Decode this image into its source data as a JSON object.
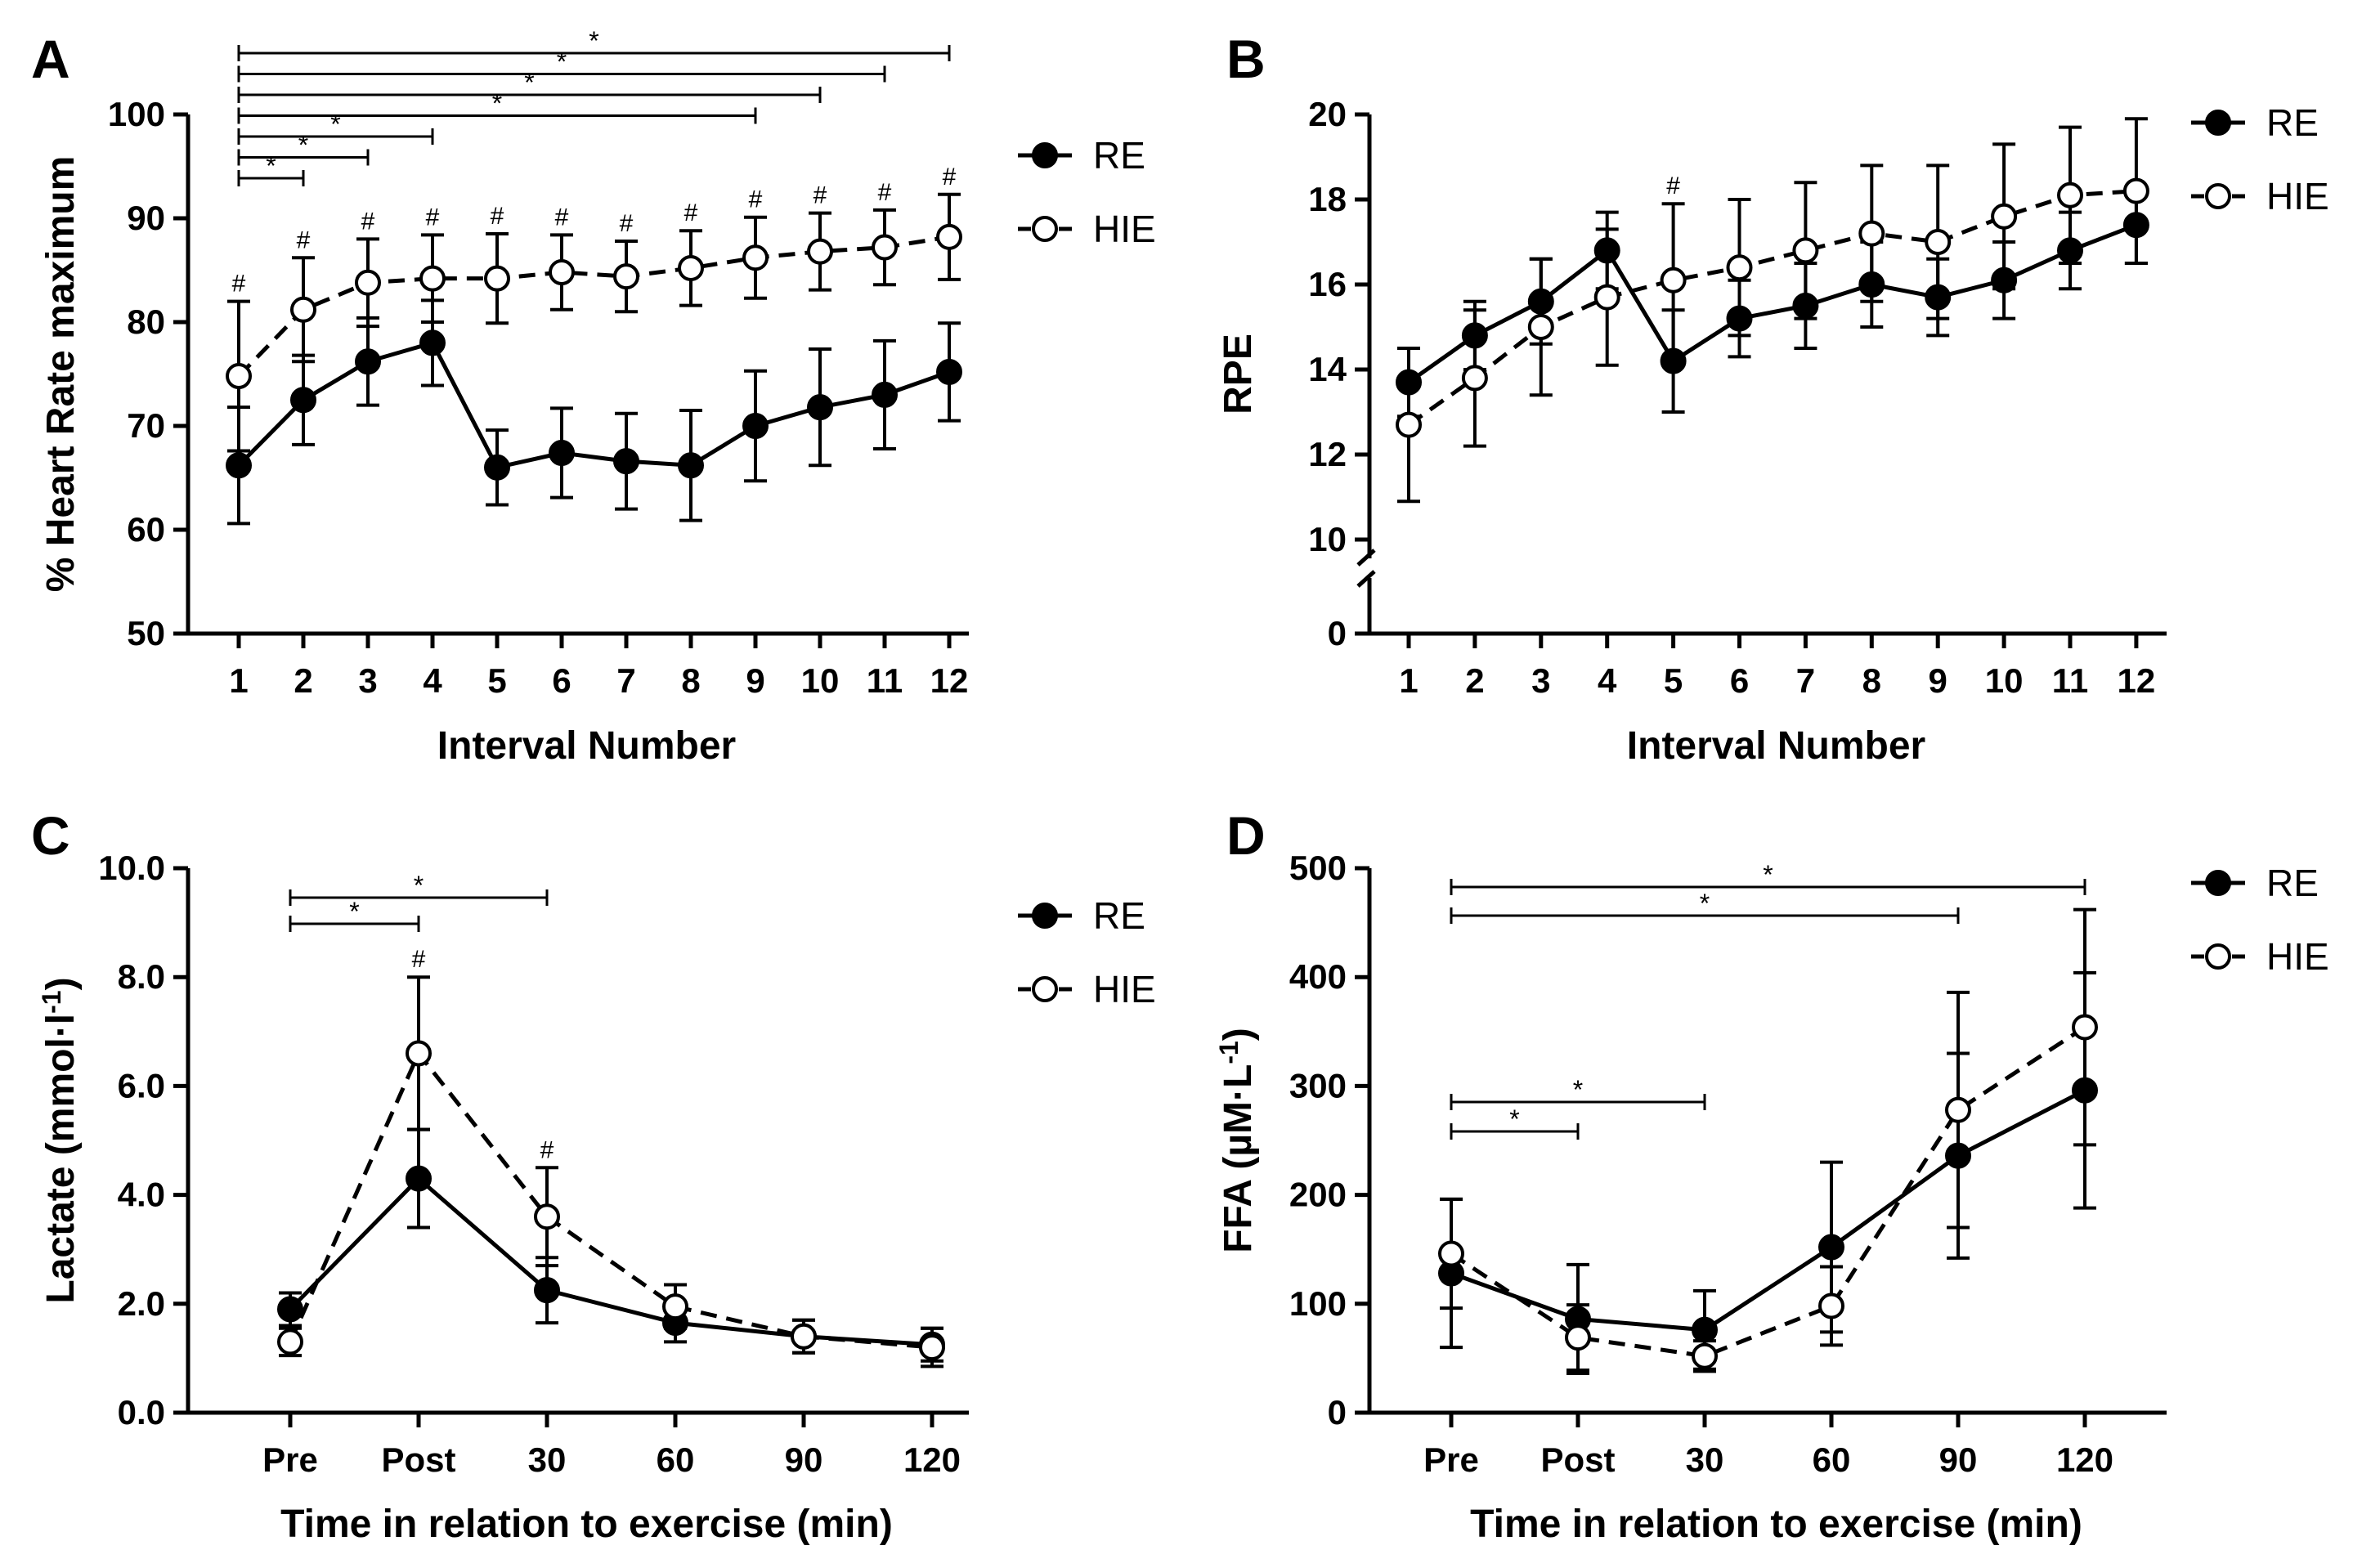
{
  "chart_data": [
    {
      "panel": "A",
      "type": "line",
      "xlabel": "Interval Number",
      "ylabel": "% Heart  Rate  maximum",
      "categories": [
        "1",
        "2",
        "3",
        "4",
        "5",
        "6",
        "7",
        "8",
        "9",
        "10",
        "11",
        "12"
      ],
      "ylim": [
        50,
        100
      ],
      "yticks": [
        "50",
        "60",
        "70",
        "80",
        "90",
        "100"
      ],
      "legend_position": "right",
      "series": [
        {
          "name": "RE",
          "marker": "filled-circle",
          "line": "solid",
          "values": [
            66.2,
            72.5,
            76.2,
            78.0,
            66.0,
            67.4,
            66.6,
            66.2,
            70.0,
            71.8,
            73.0,
            75.2
          ],
          "error": [
            5.6,
            4.3,
            4.2,
            4.1,
            3.6,
            4.3,
            4.6,
            5.3,
            5.3,
            5.6,
            5.2,
            4.7
          ]
        },
        {
          "name": "HIE",
          "marker": "open-circle",
          "line": "dashed",
          "values": [
            74.8,
            81.2,
            83.8,
            84.2,
            84.2,
            84.8,
            84.4,
            85.2,
            86.2,
            86.8,
            87.2,
            88.2
          ],
          "error": [
            7.2,
            5.0,
            4.2,
            4.2,
            4.3,
            3.6,
            3.4,
            3.6,
            3.9,
            3.7,
            3.6,
            4.1
          ]
        }
      ],
      "annotations": {
        "hash": [
          "1",
          "2",
          "3",
          "4",
          "5",
          "6",
          "7",
          "8",
          "9",
          "10",
          "11",
          "12"
        ],
        "hash_symbol": "#",
        "brackets": [
          {
            "from": "1",
            "to": "12",
            "label": "*"
          },
          {
            "from": "1",
            "to": "11",
            "label": "*"
          },
          {
            "from": "1",
            "to": "10",
            "label": "*"
          },
          {
            "from": "1",
            "to": "9",
            "label": "*"
          },
          {
            "from": "1",
            "to": "4",
            "label": "*"
          },
          {
            "from": "1",
            "to": "3",
            "label": "*"
          },
          {
            "from": "1",
            "to": "2",
            "label": "*"
          }
        ]
      }
    },
    {
      "panel": "B",
      "type": "line",
      "xlabel": "Interval Number",
      "ylabel": "RPE",
      "categories": [
        "1",
        "2",
        "3",
        "4",
        "5",
        "6",
        "7",
        "8",
        "9",
        "10",
        "11",
        "12"
      ],
      "ylim": [
        10,
        20
      ],
      "yticks": [
        "10",
        "12",
        "14",
        "16",
        "18",
        "20"
      ],
      "axis_break": {
        "lower_tick": "0"
      },
      "legend_position": "top-right",
      "series": [
        {
          "name": "RE",
          "marker": "filled-circle",
          "line": "solid",
          "values": [
            13.7,
            14.8,
            15.6,
            16.8,
            14.2,
            15.2,
            15.5,
            16.0,
            15.7,
            16.1,
            16.8,
            17.4
          ],
          "error": [
            0.8,
            0.8,
            1.0,
            0.9,
            1.2,
            0.9,
            1.0,
            1.0,
            0.9,
            0.9,
            0.9,
            0.9
          ]
        },
        {
          "name": "HIE",
          "marker": "open-circle",
          "line": "dashed",
          "values": [
            12.7,
            13.8,
            15.0,
            15.7,
            16.1,
            16.4,
            16.8,
            17.2,
            17.0,
            17.6,
            18.1,
            18.2
          ],
          "error": [
            1.8,
            1.6,
            1.6,
            1.6,
            1.8,
            1.6,
            1.6,
            1.6,
            1.8,
            1.7,
            1.6,
            1.7
          ]
        }
      ],
      "annotations": {
        "hash": [
          "5"
        ],
        "hash_symbol": "#"
      }
    },
    {
      "panel": "C",
      "type": "line",
      "xlabel": "Time in relation to exercise (min)",
      "ylabel_main": "Lactate (mmol·l",
      "ylabel_sup": "-1",
      "ylabel_end": ")",
      "categories": [
        "Pre",
        "Post",
        "30",
        "60",
        "90",
        "120"
      ],
      "ylim": [
        0,
        10
      ],
      "yticks": [
        "0.0",
        "2.0",
        "4.0",
        "6.0",
        "8.0",
        "10.0"
      ],
      "legend_position": "top-right",
      "series": [
        {
          "name": "RE",
          "marker": "filled-circle",
          "line": "solid",
          "values": [
            1.9,
            4.3,
            2.25,
            1.65,
            1.4,
            1.25
          ],
          "error": [
            0.3,
            0.9,
            0.6,
            0.35,
            0.3,
            0.3
          ]
        },
        {
          "name": "HIE",
          "marker": "open-circle",
          "line": "dashed",
          "values": [
            1.3,
            6.6,
            3.6,
            1.95,
            1.4,
            1.2
          ],
          "error": [
            0.25,
            1.4,
            0.9,
            0.4,
            0.3,
            0.35
          ]
        }
      ],
      "annotations": {
        "hash": [
          "Post",
          "30"
        ],
        "hash_symbol": "#",
        "brackets": [
          {
            "from": "Pre",
            "to": "30",
            "label": "*"
          },
          {
            "from": "Pre",
            "to": "Post",
            "label": "*"
          }
        ]
      }
    },
    {
      "panel": "D",
      "type": "line",
      "xlabel": "Time in relation to exercise (min)",
      "ylabel_main": "FFA (µM·L",
      "ylabel_sup": "-1",
      "ylabel_end": ")",
      "categories": [
        "Pre",
        "Post",
        "30",
        "60",
        "90",
        "120"
      ],
      "ylim": [
        0,
        500
      ],
      "yticks": [
        "0",
        "100",
        "200",
        "300",
        "400",
        "500"
      ],
      "legend_position": "top-right",
      "series": [
        {
          "name": "RE",
          "marker": "filled-circle",
          "line": "solid",
          "values": [
            128,
            86,
            76,
            152,
            236,
            296
          ],
          "error": [
            68,
            50,
            36,
            78,
            94,
            108
          ]
        },
        {
          "name": "HIE",
          "marker": "open-circle",
          "line": "dashed",
          "values": [
            146,
            69,
            52,
            98,
            278,
            354
          ],
          "error": [
            50,
            30,
            14,
            36,
            108,
            108
          ]
        }
      ],
      "annotations": {
        "brackets": [
          {
            "from": "Pre",
            "to": "120",
            "label": "*"
          },
          {
            "from": "Pre",
            "to": "90",
            "label": "*"
          },
          {
            "from": "Pre",
            "to": "30",
            "label": "*"
          },
          {
            "from": "Pre",
            "to": "Post",
            "label": "*"
          }
        ]
      }
    }
  ]
}
